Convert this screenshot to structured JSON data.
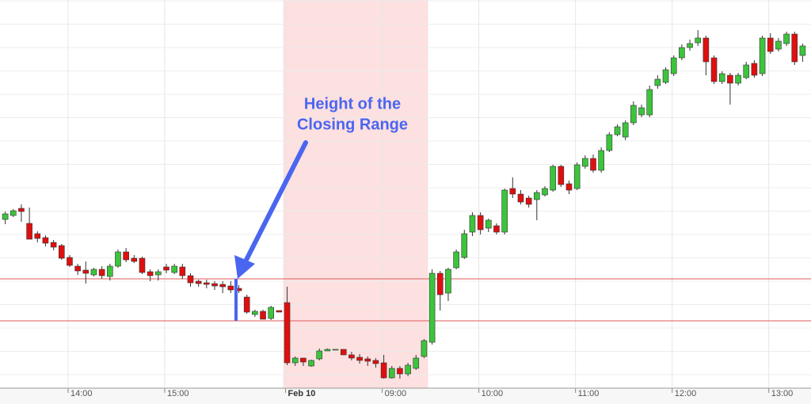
{
  "chart_data": {
    "type": "candlestick",
    "annotation": [
      "Height of the",
      "Closing Range"
    ],
    "categories": [
      null,
      null,
      null,
      null,
      null,
      null,
      null,
      null,
      "14:00",
      null,
      null,
      null,
      null,
      null,
      null,
      null,
      null,
      null,
      null,
      null,
      "15:00",
      null,
      null,
      null,
      null,
      null,
      null,
      null,
      null,
      null,
      null,
      null,
      null,
      null,
      null,
      "Feb 10",
      null,
      null,
      null,
      null,
      null,
      null,
      null,
      null,
      null,
      null,
      null,
      "09:00",
      null,
      null,
      null,
      null,
      null,
      null,
      null,
      null,
      null,
      null,
      null,
      "10:00",
      null,
      null,
      null,
      null,
      null,
      null,
      null,
      null,
      null,
      null,
      null,
      "11:00",
      null,
      null,
      null,
      null,
      null,
      null,
      null,
      null,
      null,
      null,
      null,
      "12:00",
      null,
      null,
      null,
      null,
      null,
      null,
      null,
      null,
      null,
      null,
      null,
      "13:00",
      null,
      null,
      null,
      null
    ],
    "open": [
      213,
      218,
      227,
      208,
      195,
      190,
      184,
      180,
      165,
      154,
      149,
      143,
      150,
      141,
      154,
      172,
      164,
      164,
      147,
      143,
      153,
      146,
      153,
      142,
      135,
      133,
      132,
      131,
      129,
      126,
      115,
      93,
      97,
      88,
      98,
      108,
      32,
      38,
      28,
      37,
      47,
      49,
      49,
      42,
      39,
      37,
      35,
      32,
      13,
      25,
      18,
      25,
      40,
      58,
      145,
      120,
      152,
      165,
      197,
      218,
      202,
      205,
      197,
      252,
      245,
      240,
      238,
      244,
      250,
      280,
      258,
      252,
      280,
      290,
      275,
      300,
      320,
      317,
      335,
      345,
      345,
      382,
      386,
      397,
      417,
      430,
      436,
      442,
      417,
      387,
      395,
      385,
      392,
      410,
      397,
      442,
      428,
      435,
      447,
      420
    ],
    "high": [
      223,
      226,
      232,
      228,
      198,
      193,
      187,
      182,
      168,
      157,
      160,
      152,
      154,
      157,
      175,
      177,
      168,
      166,
      150,
      150,
      157,
      157,
      157,
      145,
      137,
      137,
      135,
      135,
      135,
      130,
      118,
      99,
      99,
      104,
      98,
      128,
      40,
      38,
      36,
      50,
      50,
      49,
      49,
      46,
      43,
      40,
      38,
      42,
      28,
      28,
      32,
      42,
      62,
      150,
      148,
      152,
      175,
      200,
      222,
      222,
      214,
      208,
      252,
      266,
      250,
      243,
      250,
      255,
      282,
      282,
      262,
      285,
      294,
      295,
      304,
      323,
      333,
      338,
      362,
      358,
      382,
      395,
      405,
      420,
      434,
      440,
      452,
      445,
      420,
      400,
      398,
      398,
      412,
      414,
      445,
      448,
      442,
      450,
      450,
      435
    ],
    "low": [
      207,
      216,
      210,
      188,
      184,
      179,
      174,
      162,
      153,
      143,
      132,
      141,
      138,
      136,
      152,
      159,
      158,
      144,
      135,
      136,
      145,
      144,
      138,
      128,
      128,
      126,
      124,
      120,
      120,
      120,
      94,
      90,
      87,
      86,
      96,
      29,
      28,
      28,
      27,
      35,
      47,
      49,
      42,
      35,
      31,
      28,
      26,
      12,
      12,
      12,
      15,
      23,
      38,
      55,
      98,
      110,
      150,
      163,
      192,
      194,
      197,
      194,
      194,
      240,
      232,
      228,
      212,
      242,
      248,
      254,
      245,
      250,
      277,
      272,
      272,
      298,
      318,
      313,
      332,
      342,
      342,
      378,
      384,
      394,
      414,
      426,
      432,
      395,
      384,
      384,
      358,
      382,
      390,
      392,
      394,
      422,
      425,
      432,
      408,
      412
    ],
    "close": [
      220,
      224,
      223,
      188,
      189,
      183,
      178,
      164,
      155,
      148,
      145,
      150,
      142,
      154,
      172,
      162,
      160,
      146,
      142,
      147,
      149,
      154,
      142,
      133,
      132,
      131,
      129,
      128,
      124,
      123,
      96,
      97,
      87,
      102,
      96,
      32,
      38,
      33,
      35,
      47,
      49,
      49,
      42,
      38,
      35,
      34,
      31,
      13,
      25,
      18,
      29,
      38,
      60,
      145,
      118,
      150,
      172,
      195,
      218,
      200,
      212,
      197,
      250,
      245,
      235,
      232,
      247,
      252,
      280,
      257,
      250,
      282,
      290,
      275,
      300,
      320,
      330,
      335,
      357,
      354,
      377,
      390,
      402,
      417,
      430,
      435,
      442,
      412,
      387,
      397,
      385,
      395,
      408,
      395,
      442,
      425,
      438,
      447,
      412,
      432
    ],
    "up_color": "#3cc43c",
    "down_color": "#e00f0f",
    "ylim": [
      0,
      490
    ],
    "grid": true,
    "reference_lines": [
      138,
      85
    ],
    "reference_color": "#e05a5a",
    "range_marker_color": "#4a66f0",
    "highlight": [
      35,
      52
    ],
    "highlight_color": "#fde0e0"
  }
}
